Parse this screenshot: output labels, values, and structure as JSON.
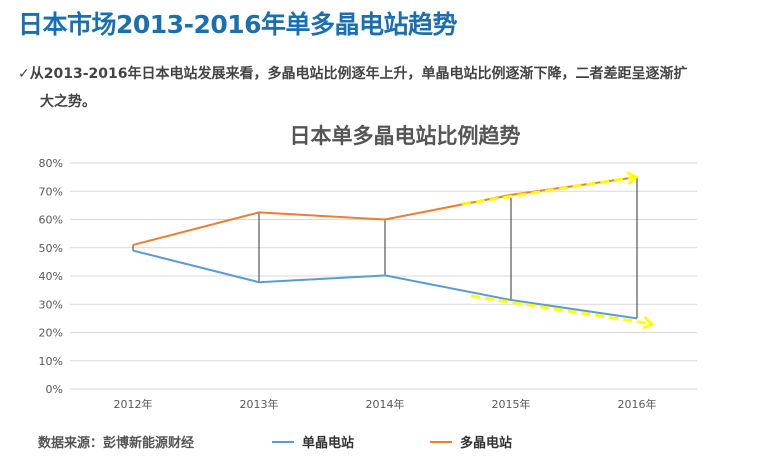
{
  "header": {
    "title": "日本市场2013-2016年单多晶电站趋势",
    "check_icon": "checkmark-icon",
    "note_line1": "从2013-2016年日本电站发展来看，多晶电站比例逐年上升，单晶电站比例逐渐下降，二者差距呈逐渐扩",
    "note_line2": "大之势。"
  },
  "source": "数据来源：彭博新能源财经",
  "chart_data": {
    "type": "line",
    "title": "日本单多晶电站比例趋势",
    "categories": [
      "2012年",
      "2013年",
      "2014年",
      "2015年",
      "2016年"
    ],
    "yticks": [
      "0%",
      "10%",
      "20%",
      "30%",
      "40%",
      "50%",
      "60%",
      "70%",
      "80%"
    ],
    "ylim": [
      0,
      80
    ],
    "grid": true,
    "legend": "bottom",
    "series": [
      {
        "name": "单晶电站",
        "color": "#5b9bd5",
        "values": [
          49,
          37.8,
          40.2,
          31.5,
          25
        ]
      },
      {
        "name": "多晶电站",
        "color": "#ed7d31",
        "values": [
          51,
          62.5,
          60,
          68.7,
          75
        ]
      }
    ],
    "annotations": {
      "arrow_color": "#ffff00",
      "style": "dashed trend arrows on 2014-2016 segments",
      "drop_lines": true
    }
  }
}
